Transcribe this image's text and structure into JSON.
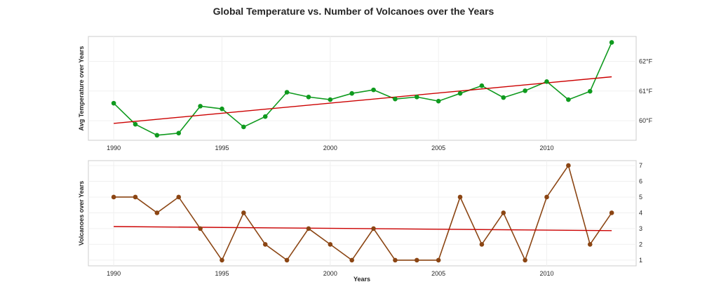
{
  "chart_data": [
    {
      "type": "line",
      "title": "Global Temperature vs. Number of Volcanoes over the Years",
      "ylabel": "Avg Temperature over Years",
      "xlabel": "",
      "x": [
        1990,
        1991,
        1992,
        1993,
        1994,
        1995,
        1996,
        1997,
        1998,
        1999,
        2000,
        2001,
        2002,
        2003,
        2004,
        2005,
        2006,
        2007,
        2008,
        2009,
        2010,
        2011,
        2012,
        2013
      ],
      "series": [
        {
          "values": [
            60.59,
            59.88,
            59.51,
            59.58,
            60.49,
            60.4,
            59.79,
            60.14,
            60.96,
            60.8,
            60.71,
            60.92,
            61.04,
            60.73,
            60.8,
            60.66,
            60.92,
            61.18,
            60.78,
            61.01,
            61.32,
            60.71,
            60.99,
            62.64
          ],
          "color": "#0f9a1e"
        }
      ],
      "trend": {
        "start": 59.91,
        "end": 61.48,
        "color": "#cc0000"
      },
      "xticks": [
        1990,
        1995,
        2000,
        2005,
        2010
      ],
      "yticks": [
        {
          "v": 60,
          "label": "60°F"
        },
        {
          "v": 61,
          "label": "61°F"
        },
        {
          "v": 62,
          "label": "62°F"
        }
      ],
      "xlim": [
        1988.83,
        2014.13
      ],
      "ylim": [
        59.34,
        62.84
      ],
      "grid": true,
      "yaxis_side": "right"
    },
    {
      "type": "line",
      "ylabel": "Volcanoes over Years",
      "xlabel": "Years",
      "x": [
        1990,
        1991,
        1992,
        1993,
        1994,
        1995,
        1996,
        1997,
        1998,
        1999,
        2000,
        2001,
        2002,
        2003,
        2004,
        2005,
        2006,
        2007,
        2008,
        2009,
        2010,
        2011,
        2012,
        2013
      ],
      "series": [
        {
          "values": [
            5,
            5,
            4,
            5,
            3,
            1,
            4,
            2,
            1,
            3,
            2,
            1,
            3,
            1,
            1,
            1,
            5,
            2,
            4,
            1,
            5,
            7,
            2,
            4
          ],
          "color": "#8b4513"
        }
      ],
      "trend": {
        "start": 3.13,
        "end": 2.87,
        "color": "#cc0000"
      },
      "xticks": [
        1990,
        1995,
        2000,
        2005,
        2010
      ],
      "yticks": [
        {
          "v": 1,
          "label": "1"
        },
        {
          "v": 2,
          "label": "2"
        },
        {
          "v": 3,
          "label": "3"
        },
        {
          "v": 4,
          "label": "4"
        },
        {
          "v": 5,
          "label": "5"
        },
        {
          "v": 6,
          "label": "6"
        },
        {
          "v": 7,
          "label": "7"
        }
      ],
      "xlim": [
        1988.83,
        2014.13
      ],
      "ylim": [
        0.64,
        7.31
      ],
      "grid": true,
      "yaxis_side": "right"
    }
  ]
}
